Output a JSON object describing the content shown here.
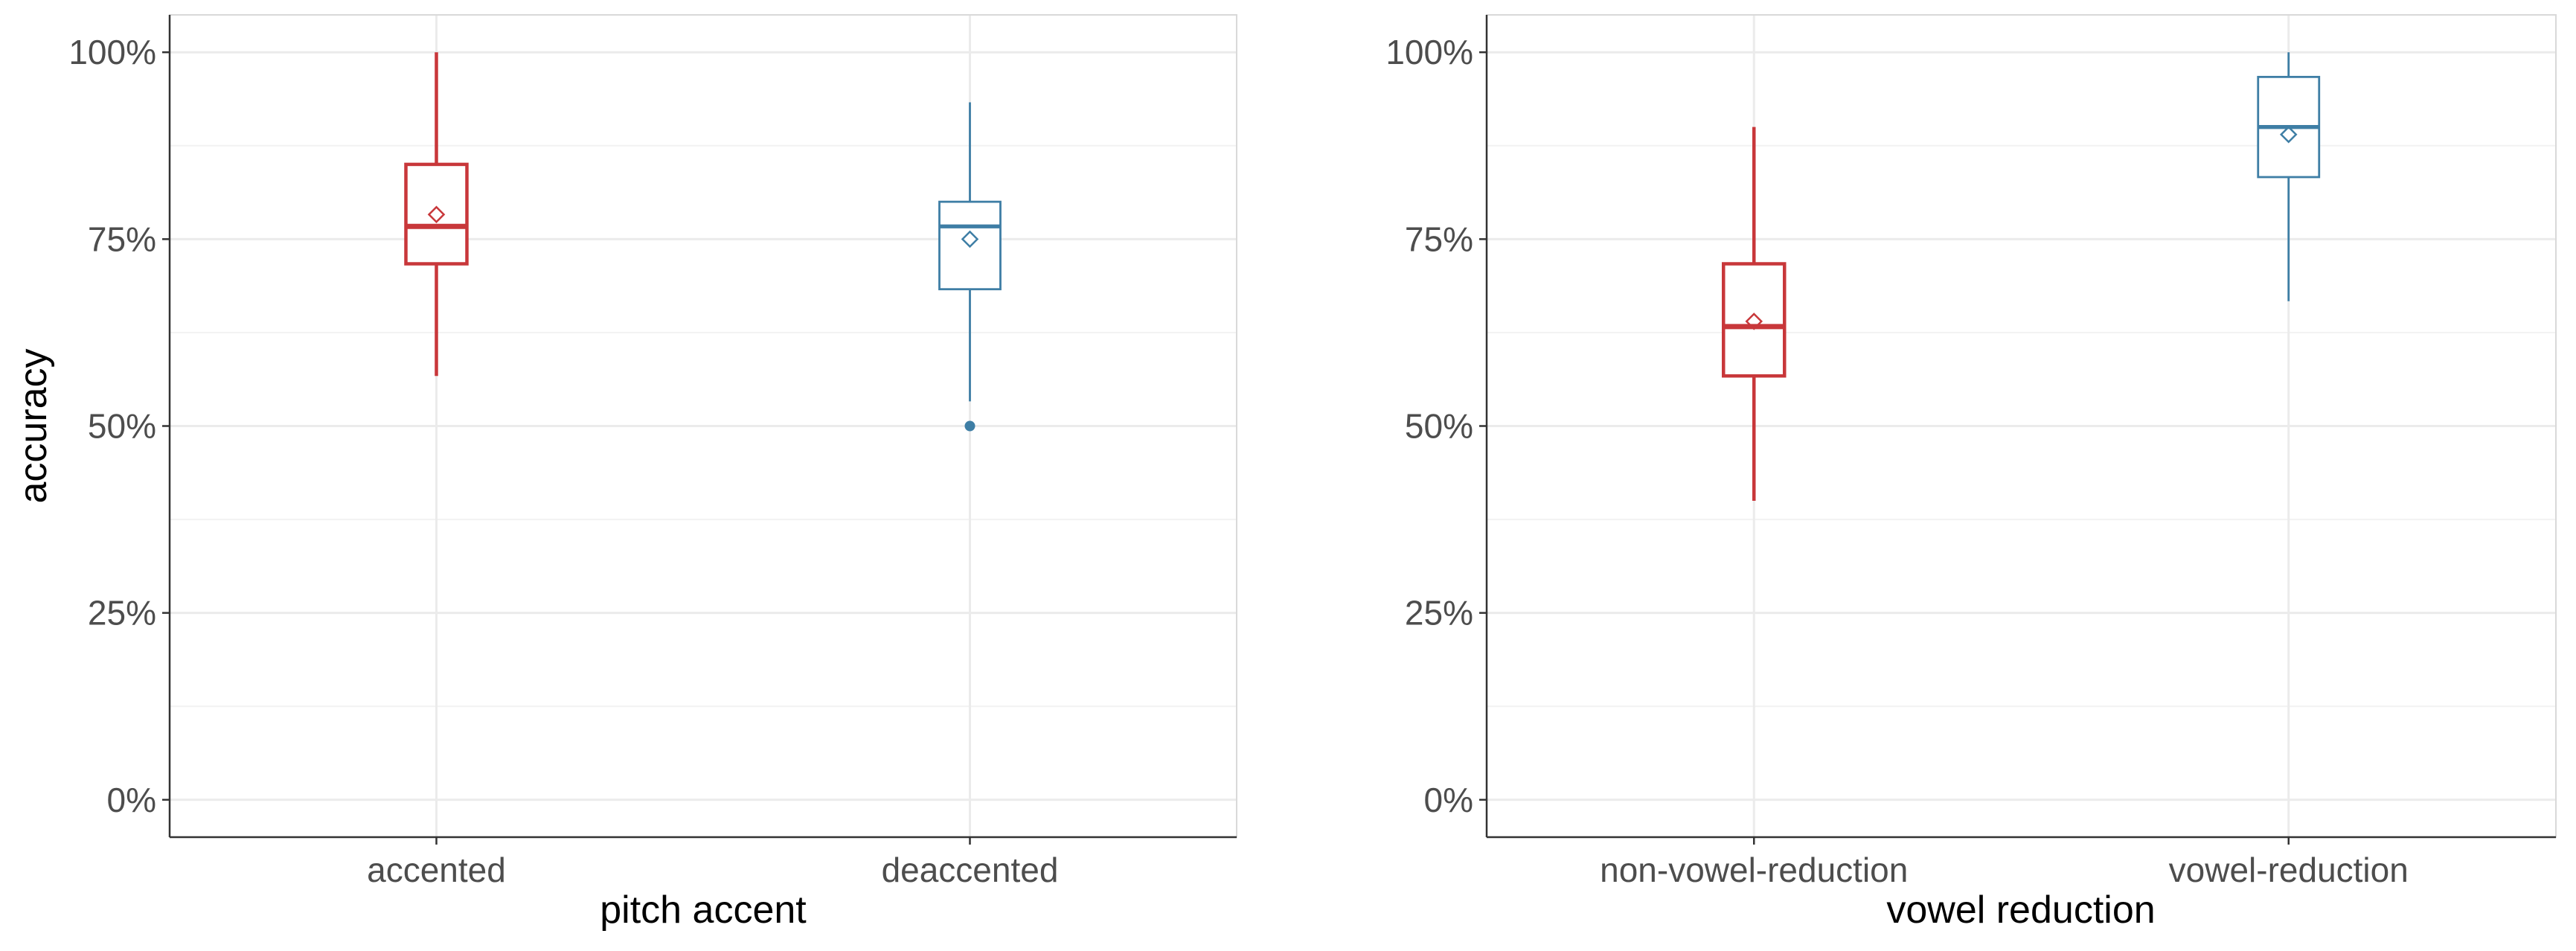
{
  "chart_data": [
    {
      "type": "box",
      "title": "",
      "xlabel": "pitch accent",
      "ylabel": "accuracy",
      "ylim": [
        -0.05,
        1.05
      ],
      "yticks": [
        0,
        0.25,
        0.5,
        0.75,
        1.0
      ],
      "ytick_labels": [
        "0%",
        "25%",
        "50%",
        "75%",
        "100%"
      ],
      "grid": true,
      "categories": [
        "accented",
        "deaccented"
      ],
      "series": [
        {
          "category": "accented",
          "color": "#c8373a",
          "whisker_low": 0.567,
          "q1": 0.717,
          "median": 0.767,
          "q3": 0.85,
          "whisker_high": 1.0,
          "mean": 0.783,
          "outliers": []
        },
        {
          "category": "deaccented",
          "color": "#3e7ea5",
          "whisker_low": 0.533,
          "q1": 0.683,
          "median": 0.767,
          "q3": 0.8,
          "whisker_high": 0.933,
          "mean": 0.75,
          "outliers": [
            0.5
          ]
        }
      ]
    },
    {
      "type": "box",
      "title": "",
      "xlabel": "vowel reduction",
      "ylabel": "",
      "ylim": [
        -0.05,
        1.05
      ],
      "yticks": [
        0,
        0.25,
        0.5,
        0.75,
        1.0
      ],
      "ytick_labels": [
        "0%",
        "25%",
        "50%",
        "75%",
        "100%"
      ],
      "grid": true,
      "categories": [
        "non-vowel-reduction",
        "vowel-reduction"
      ],
      "series": [
        {
          "category": "non-vowel-reduction",
          "color": "#c8373a",
          "whisker_low": 0.4,
          "q1": 0.567,
          "median": 0.633,
          "q3": 0.717,
          "whisker_high": 0.9,
          "mean": 0.64,
          "outliers": []
        },
        {
          "category": "vowel-reduction",
          "color": "#3e7ea5",
          "whisker_low": 0.667,
          "q1": 0.833,
          "median": 0.9,
          "q3": 0.967,
          "whisker_high": 1.0,
          "mean": 0.89,
          "outliers": []
        }
      ]
    }
  ]
}
